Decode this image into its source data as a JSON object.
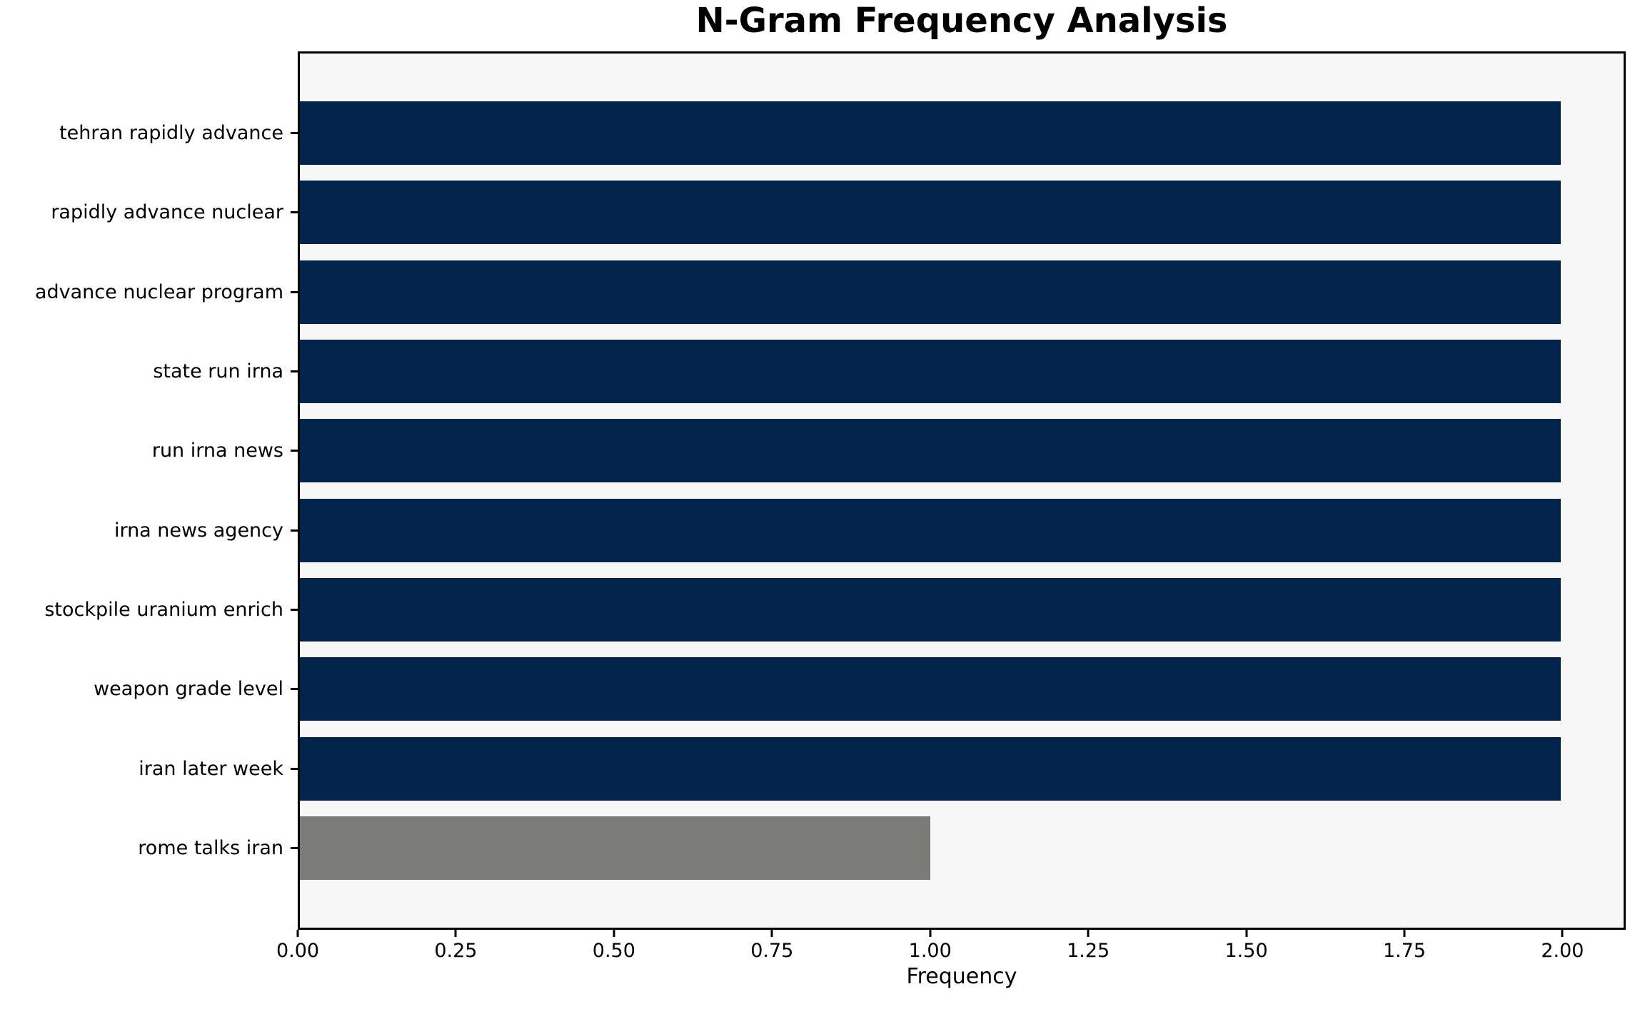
{
  "title": "N-Gram Frequency Analysis",
  "chart_data": {
    "type": "bar",
    "orientation": "horizontal",
    "title": "N-Gram Frequency Analysis",
    "xlabel": "Frequency",
    "ylabel": "",
    "categories": [
      "tehran rapidly advance",
      "rapidly advance nuclear",
      "advance nuclear program",
      "state run irna",
      "run irna news",
      "irna news agency",
      "stockpile uranium enrich",
      "weapon grade level",
      "iran later week",
      "rome talks iran"
    ],
    "values": [
      2,
      2,
      2,
      2,
      2,
      2,
      2,
      2,
      2,
      1
    ],
    "bar_colors": [
      "#02234A",
      "#02234A",
      "#02234A",
      "#02234A",
      "#02234A",
      "#02234A",
      "#02234A",
      "#02234A",
      "#02234A",
      "#7B7B78"
    ],
    "xlim": [
      0,
      2.1
    ],
    "xtick_values": [
      0,
      0.25,
      0.5,
      0.75,
      1.0,
      1.25,
      1.5,
      1.75,
      2.0
    ],
    "xtick_labels": [
      "0.00",
      "0.25",
      "0.50",
      "0.75",
      "1.00",
      "1.25",
      "1.50",
      "1.75",
      "2.00"
    ],
    "grid": false,
    "legend": "none",
    "colors": {
      "bar_default": "#02234A",
      "bar_highlight": "#7B7B78",
      "plot_background": "#F7F7F8",
      "figure_background": "#FFFFFF",
      "spine": "#000000",
      "text": "#000000"
    }
  }
}
